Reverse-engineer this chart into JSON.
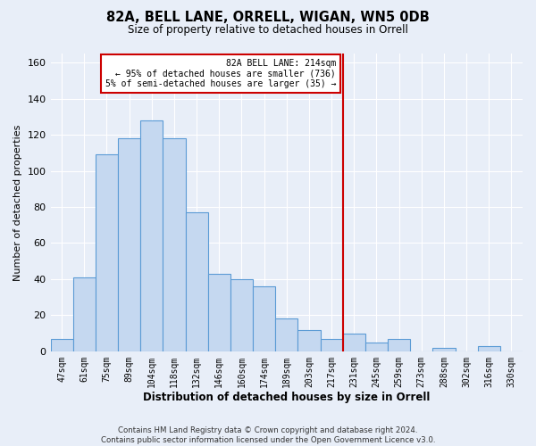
{
  "title": "82A, BELL LANE, ORRELL, WIGAN, WN5 0DB",
  "subtitle": "Size of property relative to detached houses in Orrell",
  "xlabel": "Distribution of detached houses by size in Orrell",
  "ylabel": "Number of detached properties",
  "categories": [
    "47sqm",
    "61sqm",
    "75sqm",
    "89sqm",
    "104sqm",
    "118sqm",
    "132sqm",
    "146sqm",
    "160sqm",
    "174sqm",
    "189sqm",
    "203sqm",
    "217sqm",
    "231sqm",
    "245sqm",
    "259sqm",
    "273sqm",
    "288sqm",
    "302sqm",
    "316sqm",
    "330sqm"
  ],
  "values": [
    7,
    41,
    109,
    118,
    128,
    118,
    77,
    43,
    40,
    36,
    18,
    12,
    7,
    10,
    5,
    7,
    0,
    2,
    0,
    3,
    0
  ],
  "bar_color": "#c5d8f0",
  "bar_edge_color": "#5b9bd5",
  "vline_pos": 12.5,
  "annotation_line1": "82A BELL LANE: 214sqm",
  "annotation_line2": "← 95% of detached houses are smaller (736)",
  "annotation_line3": "5% of semi-detached houses are larger (35) →",
  "annotation_box_color": "#ffffff",
  "annotation_box_edge_color": "#cc0000",
  "vline_color": "#cc0000",
  "ylim": [
    0,
    165
  ],
  "yticks": [
    0,
    20,
    40,
    60,
    80,
    100,
    120,
    140,
    160
  ],
  "footer1": "Contains HM Land Registry data © Crown copyright and database right 2024.",
  "footer2": "Contains public sector information licensed under the Open Government Licence v3.0.",
  "bg_color": "#e8eef8",
  "plot_bg_color": "#e8eef8"
}
